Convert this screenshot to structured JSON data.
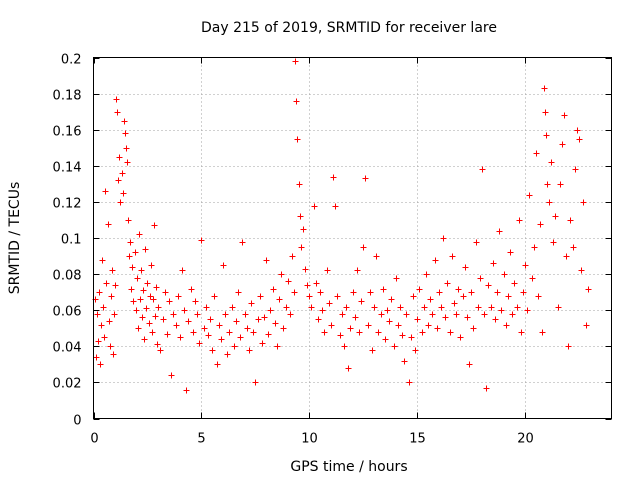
{
  "chart_data": {
    "type": "scatter",
    "title": "Day 215 of 2019, SRMTID for receiver lare",
    "xlabel": "GPS time / hours",
    "ylabel": "SRMTID / TECUs",
    "xlim": [
      0,
      24
    ],
    "ylim": [
      0,
      0.2
    ],
    "x_ticks": [
      0,
      5,
      10,
      15,
      20
    ],
    "x_tick_labels": [
      "0",
      "5",
      "10",
      "15",
      "20"
    ],
    "y_ticks": [
      0,
      0.02,
      0.04,
      0.06,
      0.08,
      0.1,
      0.12,
      0.14,
      0.16,
      0.18,
      0.2
    ],
    "y_tick_labels": [
      "0",
      "0.02",
      "0.04",
      "0.06",
      "0.08",
      "0.1",
      "0.12",
      "0.14",
      "0.16",
      "0.18",
      "0.2"
    ],
    "grid": true,
    "marker": "+",
    "color": "#ff0000",
    "series": [
      {
        "name": "SRMTID",
        "points": [
          [
            0.05,
            0.066
          ],
          [
            0.1,
            0.034
          ],
          [
            0.15,
            0.058
          ],
          [
            0.2,
            0.043
          ],
          [
            0.25,
            0.07
          ],
          [
            0.3,
            0.03
          ],
          [
            0.35,
            0.052
          ],
          [
            0.4,
            0.088
          ],
          [
            0.45,
            0.062
          ],
          [
            0.5,
            0.045
          ],
          [
            0.55,
            0.126
          ],
          [
            0.6,
            0.075
          ],
          [
            0.65,
            0.108
          ],
          [
            0.7,
            0.054
          ],
          [
            0.75,
            0.04
          ],
          [
            0.8,
            0.068
          ],
          [
            0.85,
            0.082
          ],
          [
            0.9,
            0.036
          ],
          [
            0.95,
            0.058
          ],
          [
            1.0,
            0.074
          ],
          [
            1.05,
            0.177
          ],
          [
            1.1,
            0.17
          ],
          [
            1.15,
            0.132
          ],
          [
            1.2,
            0.145
          ],
          [
            1.25,
            0.12
          ],
          [
            1.3,
            0.136
          ],
          [
            1.35,
            0.125
          ],
          [
            1.4,
            0.165
          ],
          [
            1.45,
            0.158
          ],
          [
            1.5,
            0.15
          ],
          [
            1.55,
            0.142
          ],
          [
            1.6,
            0.11
          ],
          [
            1.65,
            0.09
          ],
          [
            1.7,
            0.098
          ],
          [
            1.75,
            0.072
          ],
          [
            1.8,
            0.084
          ],
          [
            1.85,
            0.065
          ],
          [
            1.9,
            0.092
          ],
          [
            1.95,
            0.06
          ],
          [
            2.0,
            0.078
          ],
          [
            2.05,
            0.05
          ],
          [
            2.1,
            0.102
          ],
          [
            2.15,
            0.066
          ],
          [
            2.2,
            0.082
          ],
          [
            2.25,
            0.056
          ],
          [
            2.3,
            0.071
          ],
          [
            2.35,
            0.044
          ],
          [
            2.4,
            0.094
          ],
          [
            2.45,
            0.061
          ],
          [
            2.5,
            0.075
          ],
          [
            2.55,
            0.053
          ],
          [
            2.6,
            0.068
          ],
          [
            2.65,
            0.085
          ],
          [
            2.7,
            0.048
          ],
          [
            2.75,
            0.066
          ],
          [
            2.8,
            0.107
          ],
          [
            2.85,
            0.057
          ],
          [
            2.9,
            0.073
          ],
          [
            2.95,
            0.041
          ],
          [
            3.0,
            0.062
          ],
          [
            3.1,
            0.038
          ],
          [
            3.2,
            0.055
          ],
          [
            3.3,
            0.07
          ],
          [
            3.4,
            0.047
          ],
          [
            3.5,
            0.065
          ],
          [
            3.6,
            0.024
          ],
          [
            3.7,
            0.058
          ],
          [
            3.8,
            0.052
          ],
          [
            3.9,
            0.068
          ],
          [
            4.0,
            0.045
          ],
          [
            4.1,
            0.082
          ],
          [
            4.2,
            0.06
          ],
          [
            4.3,
            0.016
          ],
          [
            4.4,
            0.054
          ],
          [
            4.5,
            0.072
          ],
          [
            4.6,
            0.048
          ],
          [
            4.7,
            0.065
          ],
          [
            4.8,
            0.058
          ],
          [
            4.9,
            0.042
          ],
          [
            5.0,
            0.099
          ],
          [
            5.1,
            0.05
          ],
          [
            5.2,
            0.062
          ],
          [
            5.3,
            0.046
          ],
          [
            5.4,
            0.055
          ],
          [
            5.5,
            0.038
          ],
          [
            5.6,
            0.068
          ],
          [
            5.7,
            0.03
          ],
          [
            5.8,
            0.052
          ],
          [
            5.9,
            0.044
          ],
          [
            6.0,
            0.085
          ],
          [
            6.1,
            0.058
          ],
          [
            6.2,
            0.036
          ],
          [
            6.3,
            0.048
          ],
          [
            6.4,
            0.062
          ],
          [
            6.5,
            0.04
          ],
          [
            6.6,
            0.054
          ],
          [
            6.7,
            0.07
          ],
          [
            6.8,
            0.045
          ],
          [
            6.9,
            0.098
          ],
          [
            7.0,
            0.058
          ],
          [
            7.1,
            0.05
          ],
          [
            7.2,
            0.038
          ],
          [
            7.3,
            0.064
          ],
          [
            7.4,
            0.048
          ],
          [
            7.5,
            0.02
          ],
          [
            7.6,
            0.055
          ],
          [
            7.7,
            0.068
          ],
          [
            7.8,
            0.042
          ],
          [
            7.9,
            0.056
          ],
          [
            8.0,
            0.088
          ],
          [
            8.1,
            0.047
          ],
          [
            8.2,
            0.06
          ],
          [
            8.3,
            0.072
          ],
          [
            8.4,
            0.053
          ],
          [
            8.5,
            0.04
          ],
          [
            8.6,
            0.066
          ],
          [
            8.7,
            0.08
          ],
          [
            8.8,
            0.05
          ],
          [
            8.9,
            0.062
          ],
          [
            9.0,
            0.076
          ],
          [
            9.1,
            0.058
          ],
          [
            9.2,
            0.09
          ],
          [
            9.3,
            0.07
          ],
          [
            9.35,
            0.198
          ],
          [
            9.4,
            0.176
          ],
          [
            9.45,
            0.155
          ],
          [
            9.5,
            0.13
          ],
          [
            9.55,
            0.112
          ],
          [
            9.6,
            0.095
          ],
          [
            9.7,
            0.105
          ],
          [
            9.8,
            0.083
          ],
          [
            9.9,
            0.074
          ],
          [
            10.0,
            0.068
          ],
          [
            10.1,
            0.062
          ],
          [
            10.2,
            0.118
          ],
          [
            10.3,
            0.075
          ],
          [
            10.4,
            0.055
          ],
          [
            10.5,
            0.07
          ],
          [
            10.6,
            0.06
          ],
          [
            10.7,
            0.048
          ],
          [
            10.8,
            0.082
          ],
          [
            10.9,
            0.064
          ],
          [
            11.0,
            0.052
          ],
          [
            11.1,
            0.134
          ],
          [
            11.2,
            0.118
          ],
          [
            11.3,
            0.068
          ],
          [
            11.4,
            0.046
          ],
          [
            11.5,
            0.058
          ],
          [
            11.6,
            0.04
          ],
          [
            11.7,
            0.062
          ],
          [
            11.8,
            0.028
          ],
          [
            11.9,
            0.05
          ],
          [
            12.0,
            0.07
          ],
          [
            12.1,
            0.056
          ],
          [
            12.2,
            0.082
          ],
          [
            12.3,
            0.048
          ],
          [
            12.4,
            0.065
          ],
          [
            12.5,
            0.095
          ],
          [
            12.6,
            0.133
          ],
          [
            12.7,
            0.052
          ],
          [
            12.8,
            0.07
          ],
          [
            12.9,
            0.038
          ],
          [
            13.0,
            0.062
          ],
          [
            13.1,
            0.09
          ],
          [
            13.2,
            0.048
          ],
          [
            13.3,
            0.058
          ],
          [
            13.4,
            0.072
          ],
          [
            13.5,
            0.044
          ],
          [
            13.6,
            0.06
          ],
          [
            13.7,
            0.054
          ],
          [
            13.8,
            0.066
          ],
          [
            13.9,
            0.04
          ],
          [
            14.0,
            0.078
          ],
          [
            14.1,
            0.052
          ],
          [
            14.2,
            0.062
          ],
          [
            14.3,
            0.046
          ],
          [
            14.4,
            0.032
          ],
          [
            14.5,
            0.058
          ],
          [
            14.6,
            0.02
          ],
          [
            14.7,
            0.045
          ],
          [
            14.8,
            0.068
          ],
          [
            14.9,
            0.038
          ],
          [
            15.0,
            0.055
          ],
          [
            15.1,
            0.072
          ],
          [
            15.2,
            0.048
          ],
          [
            15.3,
            0.062
          ],
          [
            15.4,
            0.08
          ],
          [
            15.5,
            0.052
          ],
          [
            15.6,
            0.066
          ],
          [
            15.7,
            0.058
          ],
          [
            15.8,
            0.088
          ],
          [
            15.9,
            0.05
          ],
          [
            16.0,
            0.07
          ],
          [
            16.1,
            0.062
          ],
          [
            16.2,
            0.1
          ],
          [
            16.3,
            0.056
          ],
          [
            16.4,
            0.075
          ],
          [
            16.5,
            0.048
          ],
          [
            16.6,
            0.09
          ],
          [
            16.7,
            0.064
          ],
          [
            16.8,
            0.058
          ],
          [
            16.9,
            0.072
          ],
          [
            17.0,
            0.045
          ],
          [
            17.1,
            0.068
          ],
          [
            17.2,
            0.084
          ],
          [
            17.3,
            0.056
          ],
          [
            17.4,
            0.03
          ],
          [
            17.5,
            0.07
          ],
          [
            17.6,
            0.05
          ],
          [
            17.7,
            0.098
          ],
          [
            17.8,
            0.062
          ],
          [
            17.9,
            0.078
          ],
          [
            18.0,
            0.138
          ],
          [
            18.1,
            0.058
          ],
          [
            18.2,
            0.017
          ],
          [
            18.3,
            0.074
          ],
          [
            18.4,
            0.062
          ],
          [
            18.5,
            0.086
          ],
          [
            18.6,
            0.055
          ],
          [
            18.7,
            0.07
          ],
          [
            18.8,
            0.104
          ],
          [
            18.9,
            0.06
          ],
          [
            19.0,
            0.08
          ],
          [
            19.1,
            0.052
          ],
          [
            19.2,
            0.068
          ],
          [
            19.3,
            0.092
          ],
          [
            19.4,
            0.058
          ],
          [
            19.5,
            0.075
          ],
          [
            19.6,
            0.062
          ],
          [
            19.7,
            0.11
          ],
          [
            19.8,
            0.048
          ],
          [
            19.9,
            0.07
          ],
          [
            20.0,
            0.085
          ],
          [
            20.1,
            0.06
          ],
          [
            20.2,
            0.124
          ],
          [
            20.3,
            0.078
          ],
          [
            20.4,
            0.095
          ],
          [
            20.5,
            0.147
          ],
          [
            20.6,
            0.068
          ],
          [
            20.7,
            0.108
          ],
          [
            20.8,
            0.048
          ],
          [
            20.85,
            0.183
          ],
          [
            20.9,
            0.17
          ],
          [
            20.95,
            0.157
          ],
          [
            21.0,
            0.13
          ],
          [
            21.1,
            0.12
          ],
          [
            21.2,
            0.142
          ],
          [
            21.3,
            0.098
          ],
          [
            21.4,
            0.112
          ],
          [
            21.5,
            0.062
          ],
          [
            21.6,
            0.13
          ],
          [
            21.7,
            0.152
          ],
          [
            21.8,
            0.168
          ],
          [
            21.9,
            0.09
          ],
          [
            22.0,
            0.04
          ],
          [
            22.1,
            0.11
          ],
          [
            22.2,
            0.095
          ],
          [
            22.3,
            0.138
          ],
          [
            22.4,
            0.16
          ],
          [
            22.5,
            0.155
          ],
          [
            22.6,
            0.082
          ],
          [
            22.7,
            0.12
          ],
          [
            22.8,
            0.052
          ],
          [
            22.9,
            0.072
          ]
        ]
      }
    ]
  }
}
